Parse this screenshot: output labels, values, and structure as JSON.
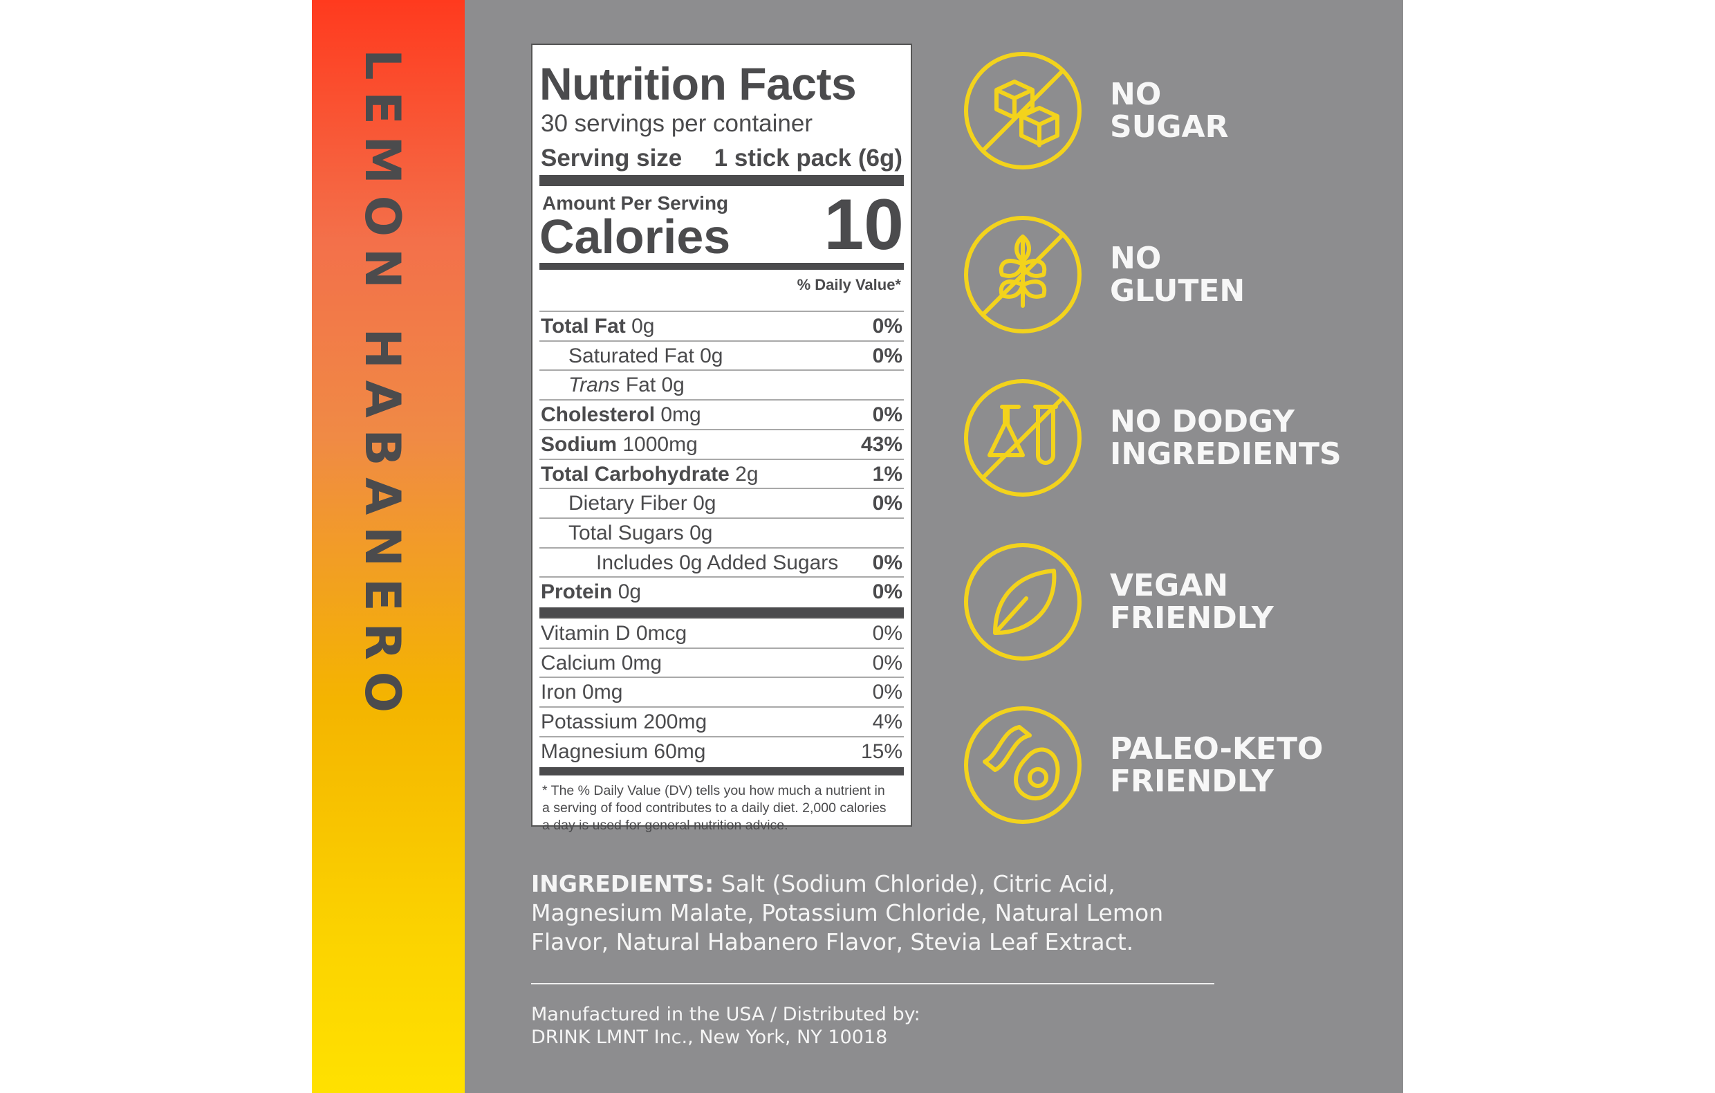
{
  "side_label": "LEMON HABANERO",
  "nutrition": {
    "title": "Nutrition Facts",
    "servings": "30 servings per container",
    "serving_size_label": "Serving size",
    "serving_size_value": "1 stick pack (6g)",
    "amount_per_serving": "Amount Per Serving",
    "calories_label": "Calories",
    "calories_value": 10,
    "daily_value_header": "% Daily Value*",
    "nutrients": [
      {
        "name": "Total Fat",
        "amount": "0g",
        "dv": "0%"
      },
      {
        "name": "Saturated Fat",
        "amount": "0g",
        "dv": "0%"
      },
      {
        "name": "Trans",
        "amount": "Fat 0g"
      },
      {
        "name": "Cholesterol",
        "amount": "0mg",
        "dv": "0%"
      },
      {
        "name": "Sodium",
        "amount": "1000mg",
        "dv": "43%"
      },
      {
        "name": "Total Carbohydrate",
        "amount": "2g",
        "dv": "1%"
      },
      {
        "name": "Dietary Fiber",
        "amount": "0g",
        "dv": "0%"
      },
      {
        "name": "Total Sugars",
        "amount": "0g"
      },
      {
        "name": "Includes 0g Added Sugars",
        "dv": "0%"
      },
      {
        "name": "Protein",
        "amount": "0g",
        "dv": "0%"
      }
    ],
    "vitamins": [
      {
        "name": "Vitamin D",
        "amount": "0mcg",
        "dv": "0%"
      },
      {
        "name": "Calcium",
        "amount": "0mg",
        "dv": "0%"
      },
      {
        "name": "Iron",
        "amount": "0mg",
        "dv": "0%"
      },
      {
        "name": "Potassium",
        "amount": "200mg",
        "dv": "4%"
      },
      {
        "name": "Magnesium",
        "amount": "60mg",
        "dv": "15%"
      }
    ],
    "footnote": "* The % Daily Value (DV) tells you how much a nutrient in a serving of food contributes to a daily diet. 2,000 calories a day is used for general nutrition advice."
  },
  "claims": [
    [
      "NO",
      "SUGAR"
    ],
    [
      "NO",
      "GLUTEN"
    ],
    [
      "NO DODGY",
      "INGREDIENTS"
    ],
    [
      "VEGAN",
      "FRIENDLY"
    ],
    [
      "PALEO-KETO",
      "FRIENDLY"
    ]
  ],
  "ingredients": {
    "label": "INGREDIENTS:",
    "text": "Salt (Sodium Chloride), Citric Acid, Magnesium Malate, Potassium Chloride, Natural Lemon Flavor, Natural Habanero Flavor, Stevia Leaf Extract."
  },
  "manufacturer": [
    "Manufactured in the USA / Distributed by:",
    "DRINK LMNT Inc., New York, NY 10018"
  ]
}
